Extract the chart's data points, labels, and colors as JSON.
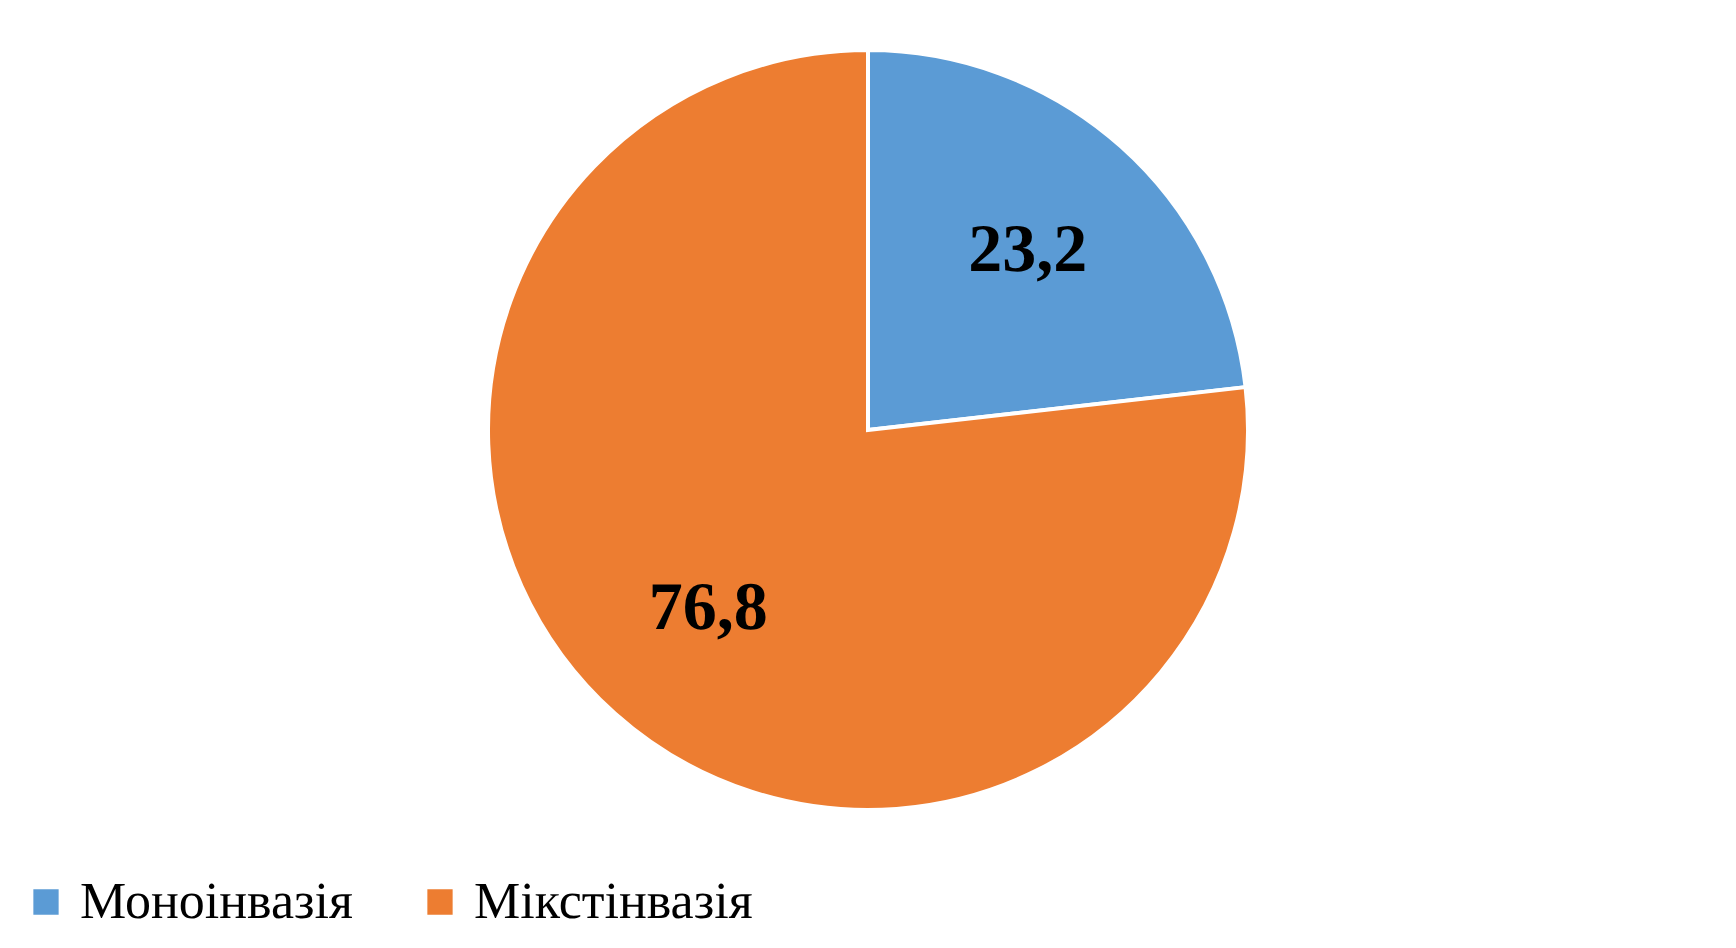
{
  "chart_data": {
    "type": "pie",
    "categories": [
      "Моноінвазія",
      "Мікстінвазія"
    ],
    "values": [
      23.2,
      76.8
    ],
    "colors": [
      "#5b9bd5",
      "#ed7d31"
    ],
    "value_labels": [
      "23,2",
      "76,8"
    ],
    "legend": "bottom"
  }
}
